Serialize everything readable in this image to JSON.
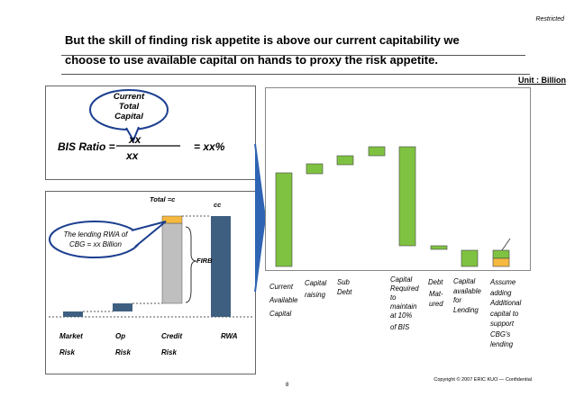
{
  "header": {
    "restricted": "Restricted",
    "title_line1": "But the skill of finding risk appetite is above our current capitability we",
    "title_line2": "choose to use available capital on hands to proxy the risk appetite.",
    "unit": "Unit : Billion"
  },
  "bis_box": {
    "bubble_text_1": "Current",
    "bubble_text_2": "Total",
    "bubble_text_3": "Capital",
    "label": "BIS Ratio =",
    "numerator": "xx",
    "denominator": "xx",
    "result": "= xx%"
  },
  "rwa_box": {
    "total_label": "Total =c",
    "cc_label": "cc",
    "firb_label": "FIRB",
    "bubble_text_1": "The lending RWA of",
    "bubble_text_2": "CBG = xx Billion",
    "bars": [
      {
        "label_line1": "Market",
        "label_line2": "Risk"
      },
      {
        "label_line1": "Op",
        "label_line2": "Risk"
      },
      {
        "label_line1": "Credit",
        "label_line2": "Risk"
      },
      {
        "label_line1": "RWA",
        "label_line2": ""
      }
    ],
    "colors": {
      "navy": "#3f5f80",
      "grey": "#bfbfbf",
      "orange": "#f5b940"
    }
  },
  "waterfall": {
    "labels": {
      "current_1": "Current",
      "current_2": "Available",
      "current_3": "Capital",
      "raising_1": "Capital",
      "raising_2": "raising",
      "sub_1": "Sub",
      "sub_2": "Debt",
      "req_1": "Capital",
      "req_2": "Required",
      "req_3": "to",
      "req_4": "maintain",
      "req_5": "at 10%",
      "req_6": "of BIS",
      "debt_1": "Debt",
      "debt_2": "Mat-",
      "debt_3": "ured",
      "lending_1": "Capital",
      "lending_2": "available",
      "lending_3": "for",
      "lending_4": "Lending",
      "assume_1": "Assume",
      "assume_2": "adding",
      "assume_3": "Additional",
      "assume_4": "capital to",
      "assume_5": "support",
      "assume_6": "CBG's",
      "assume_7": "lending"
    },
    "colors": {
      "green": "#7fc241",
      "orange": "#f5b940"
    }
  },
  "footer": {
    "copyright": "Copyright © 2007 ERIC KUO — Confidential",
    "page": "8"
  }
}
